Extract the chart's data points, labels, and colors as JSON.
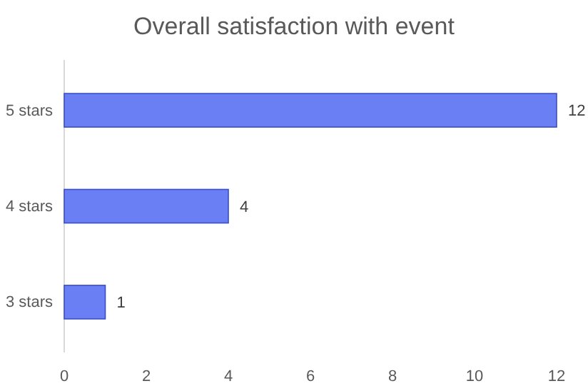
{
  "chart_data": {
    "type": "bar",
    "orientation": "horizontal",
    "title": "Overall satisfaction with event",
    "categories": [
      "5 stars",
      "4 stars",
      "3 stars"
    ],
    "values": [
      12,
      4,
      1
    ],
    "color": "#6b7ff5",
    "xlim": [
      0,
      12
    ],
    "xticks": [
      0,
      2,
      4,
      6,
      8,
      10,
      12
    ],
    "data_labels": true,
    "grid": false
  }
}
